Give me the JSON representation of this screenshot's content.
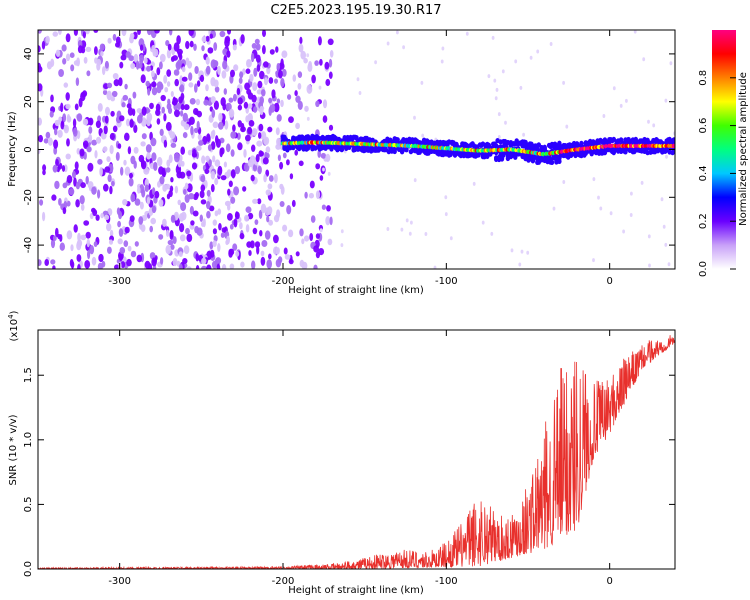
{
  "title": "C2E5.2023.195.19.30.R17",
  "chart_data": [
    {
      "type": "heatmap",
      "xlabel": "Height of straight line (km)",
      "ylabel": "Frequency (Hz)",
      "xlim": [
        -350,
        40
      ],
      "ylim": [
        -50,
        50
      ],
      "xticks": [
        -300,
        -200,
        -100,
        0
      ],
      "yticks": [
        -40,
        -20,
        0,
        20,
        40
      ],
      "colorbar": {
        "label": "Normalized spectral amplitude",
        "range": [
          0,
          1
        ],
        "ticks": [
          "0.0",
          "0.2",
          "0.4",
          "0.6",
          "0.8"
        ],
        "colors": [
          "#ffffff",
          "#c8a0f8",
          "#6a00ff",
          "#0000ff",
          "#00c8ff",
          "#00ff80",
          "#40ff00",
          "#ffff00",
          "#ff8000",
          "#ff0000",
          "#ff0080"
        ]
      },
      "regions": [
        {
          "x": [
            -350,
            -185
          ],
          "y": [
            -50,
            50
          ],
          "description": "broadband noise",
          "amplitude": 0.15
        },
        {
          "x": [
            -200,
            40
          ],
          "y": [
            -5,
            5
          ],
          "description": "narrow band signal near 0 Hz",
          "amplitude": 0.7
        }
      ],
      "band_center": [
        {
          "x": -200,
          "f": 2.5
        },
        {
          "x": -180,
          "f": 3
        },
        {
          "x": -160,
          "f": 2.5
        },
        {
          "x": -140,
          "f": 2
        },
        {
          "x": -120,
          "f": 1.5
        },
        {
          "x": -100,
          "f": 0.5
        },
        {
          "x": -80,
          "f": -0.5
        },
        {
          "x": -60,
          "f": 0
        },
        {
          "x": -40,
          "f": -2
        },
        {
          "x": -20,
          "f": 0
        },
        {
          "x": 0,
          "f": 1.5
        },
        {
          "x": 20,
          "f": 1.5
        },
        {
          "x": 40,
          "f": 1.5
        }
      ]
    },
    {
      "type": "line",
      "xlabel": "Height of straight line (km)",
      "ylabel": "SNR (10 * v/v)",
      "yscale_label": "(x10^4)",
      "xlim": [
        -350,
        40
      ],
      "ylim": [
        0,
        1.85
      ],
      "xticks": [
        -300,
        -200,
        -100,
        0
      ],
      "yticks": [
        "0.0",
        "0.5",
        "1.0",
        "1.5"
      ],
      "series": [
        {
          "color": "#e8302c",
          "envelope": [
            {
              "x": -350,
              "y": 0.01
            },
            {
              "x": -200,
              "y": 0.02
            },
            {
              "x": -170,
              "y": 0.04
            },
            {
              "x": -150,
              "y": 0.09
            },
            {
              "x": -130,
              "y": 0.16
            },
            {
              "x": -110,
              "y": 0.14
            },
            {
              "x": -100,
              "y": 0.22
            },
            {
              "x": -90,
              "y": 0.38
            },
            {
              "x": -80,
              "y": 0.62
            },
            {
              "x": -65,
              "y": 0.4
            },
            {
              "x": -50,
              "y": 0.68
            },
            {
              "x": -40,
              "y": 1.1
            },
            {
              "x": -30,
              "y": 1.6
            },
            {
              "x": -20,
              "y": 1.8
            },
            {
              "x": -10,
              "y": 1.45
            },
            {
              "x": 0,
              "y": 1.5
            },
            {
              "x": 10,
              "y": 1.65
            },
            {
              "x": 25,
              "y": 1.78
            },
            {
              "x": 40,
              "y": 1.82
            }
          ],
          "baseline": [
            {
              "x": -350,
              "y": 0.0
            },
            {
              "x": -150,
              "y": 0.0
            },
            {
              "x": -80,
              "y": 0.02
            },
            {
              "x": -40,
              "y": 0.15
            },
            {
              "x": -20,
              "y": 0.3
            },
            {
              "x": -10,
              "y": 0.85
            },
            {
              "x": 0,
              "y": 1.05
            },
            {
              "x": 20,
              "y": 1.55
            },
            {
              "x": 40,
              "y": 1.75
            }
          ]
        }
      ]
    }
  ]
}
